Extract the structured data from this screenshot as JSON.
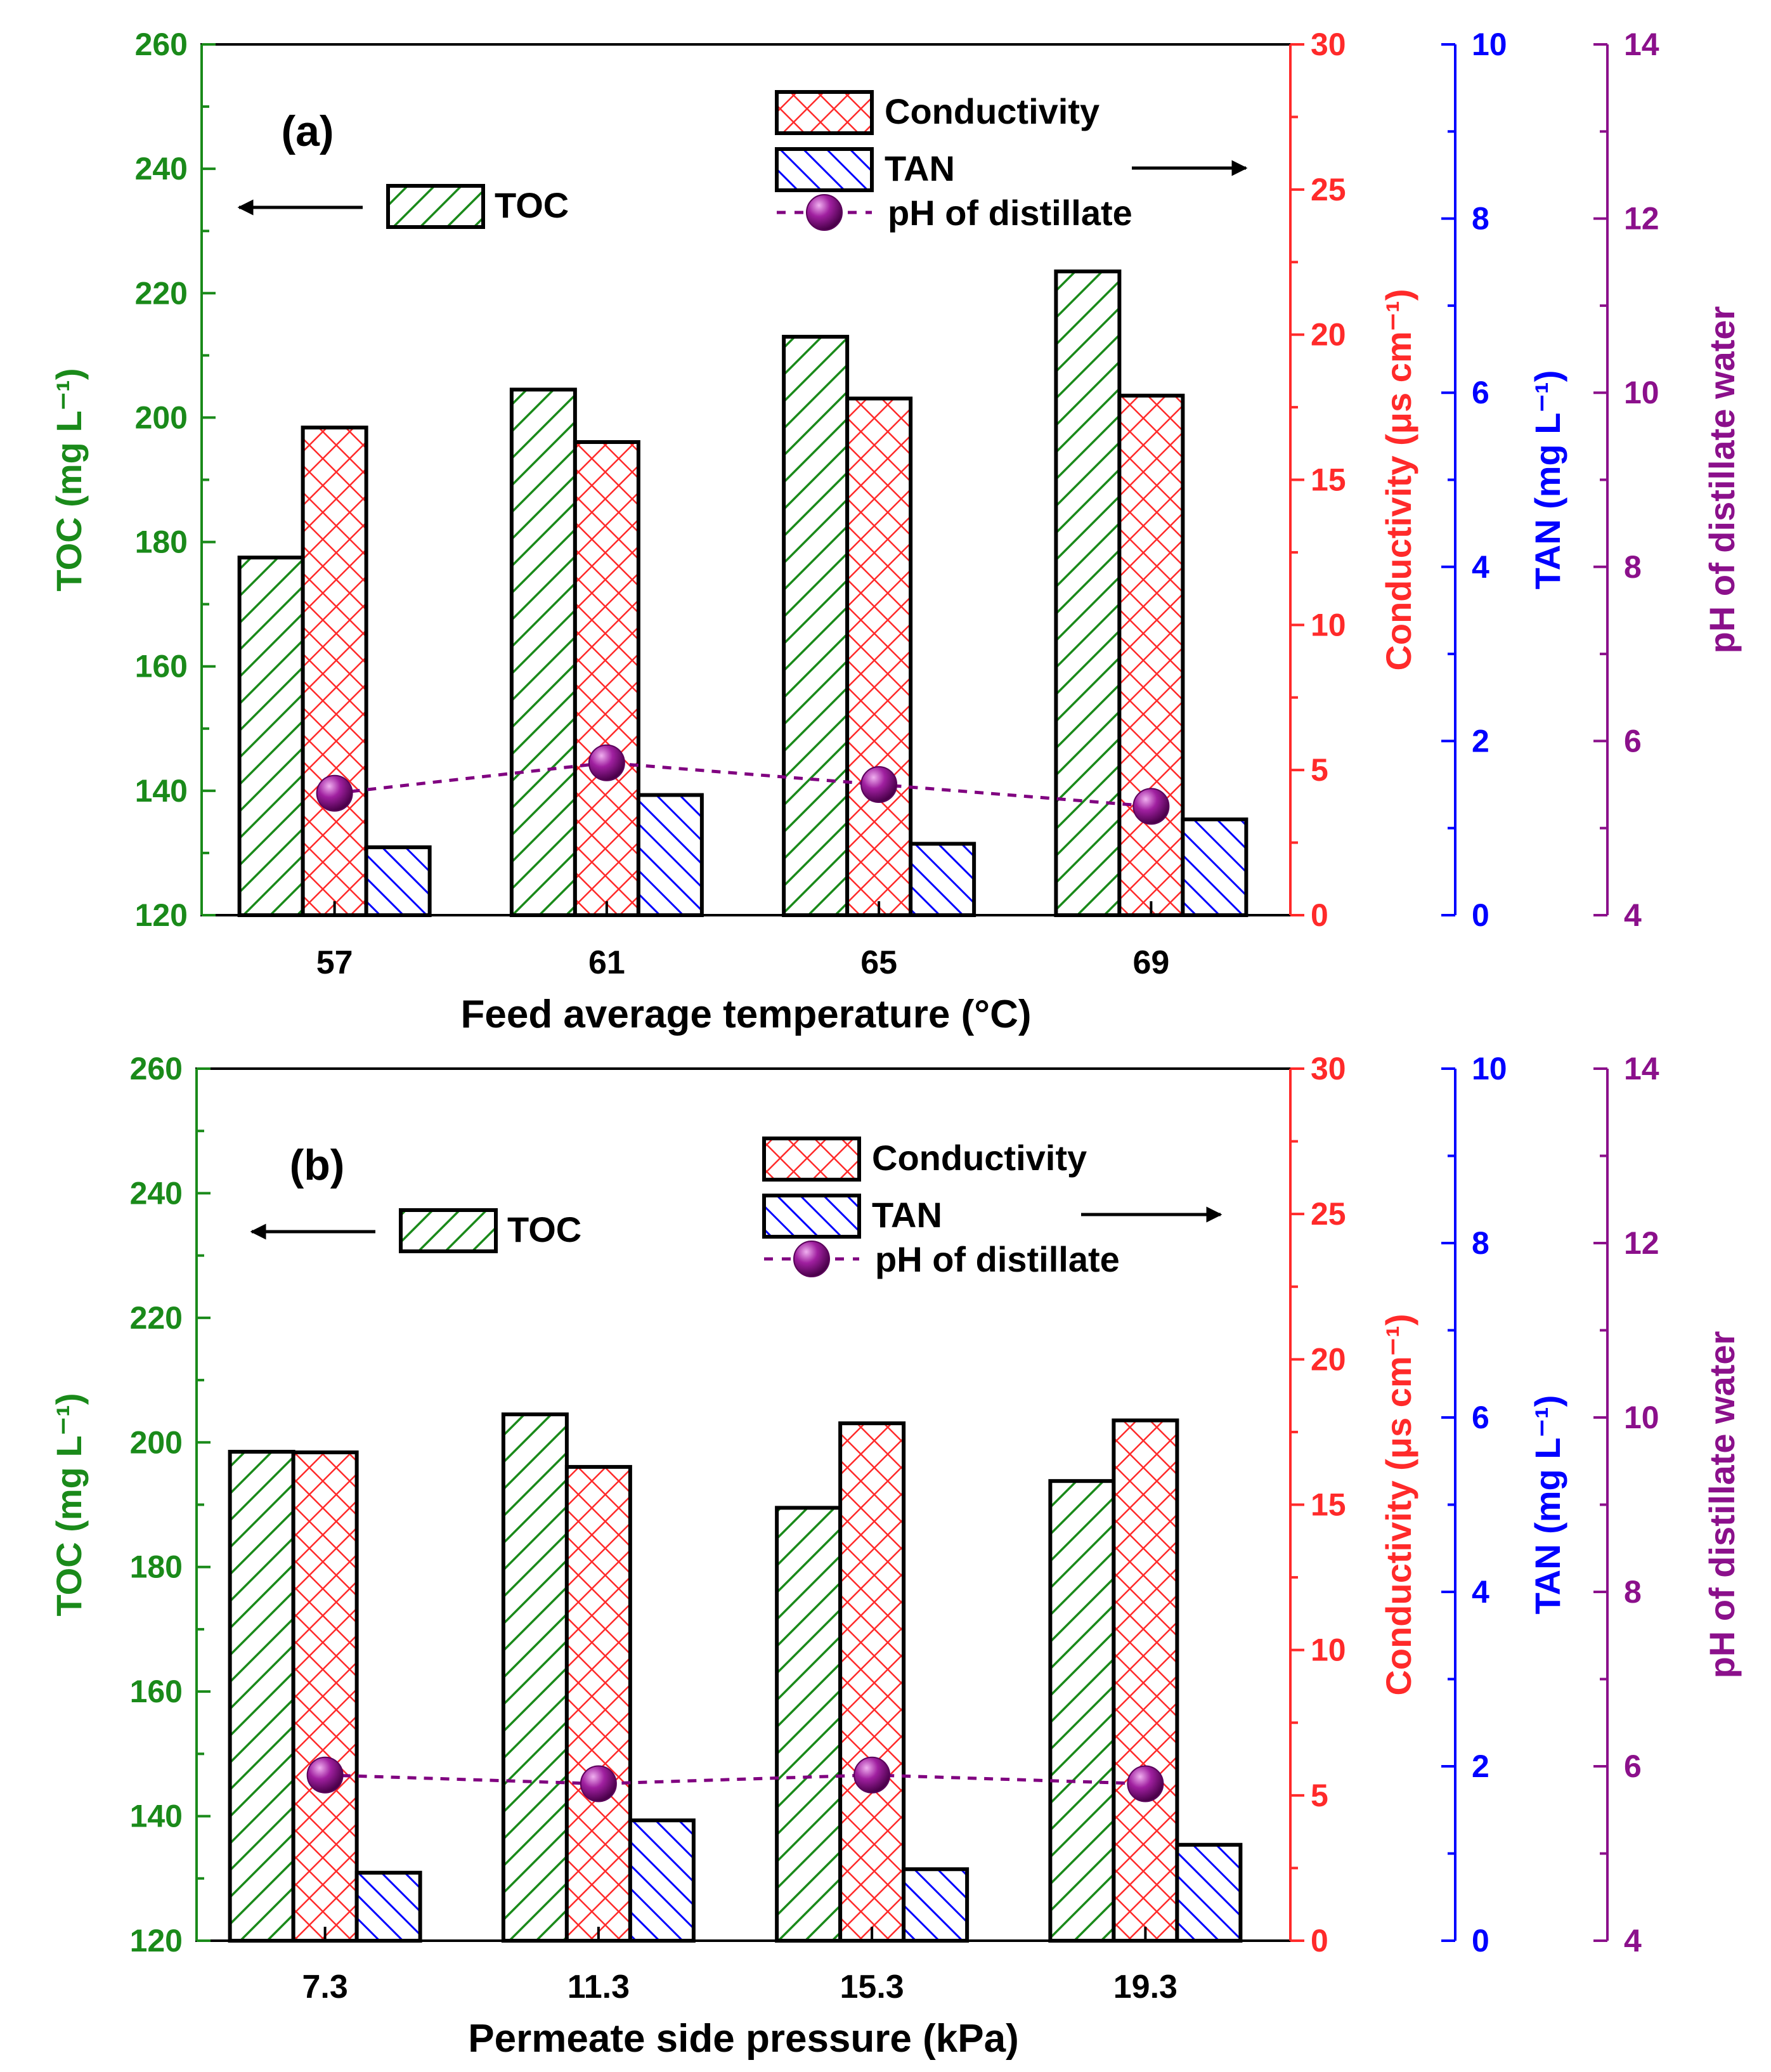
{
  "colors": {
    "toc": "#1a8a1a",
    "conductivity": "#ff2a2a",
    "tan": "#0000ff",
    "ph": "#8b108b",
    "ph_marker": "#800080",
    "text": "#000000"
  },
  "legend": {
    "toc": "TOC",
    "conductivity": "Conductivity",
    "tan": "TAN",
    "ph": "pH of distillate"
  },
  "chart_data": [
    {
      "type": "bar",
      "panel_label": "(a)",
      "xlabel": "Feed average temperature (°C)",
      "categories": [
        "57",
        "61",
        "65",
        "69"
      ],
      "axes": {
        "toc": {
          "label": "TOC (mg L⁻¹)",
          "range": [
            120,
            260
          ],
          "ticks": [
            "120",
            "140",
            "160",
            "180",
            "200",
            "220",
            "240",
            "260"
          ],
          "side": "left"
        },
        "conductivity": {
          "label": "Conductivity (μs cm⁻¹)",
          "range": [
            0,
            30
          ],
          "ticks": [
            "0",
            "5",
            "10",
            "15",
            "20",
            "25",
            "30"
          ],
          "side": "right"
        },
        "tan": {
          "label": "TAN (mg L⁻¹)",
          "range": [
            0,
            10
          ],
          "ticks": [
            "0",
            "2",
            "4",
            "6",
            "8",
            "10"
          ],
          "side": "right"
        },
        "ph": {
          "label": "pH of distillate water",
          "range": [
            4,
            14
          ],
          "ticks": [
            "4",
            "6",
            "8",
            "10",
            "12",
            "14"
          ],
          "side": "right"
        }
      },
      "series": [
        {
          "name": "TOC",
          "axis": "toc",
          "values": [
            177.5,
            204.5,
            213,
            223.5
          ]
        },
        {
          "name": "Conductivity",
          "axis": "conductivity",
          "values": [
            16.8,
            16.3,
            17.8,
            17.9
          ]
        },
        {
          "name": "TAN",
          "axis": "tan",
          "values": [
            0.78,
            1.38,
            0.82,
            1.1
          ]
        },
        {
          "name": "pH of distillate",
          "axis": "ph",
          "type": "line",
          "values": [
            5.4,
            5.75,
            5.5,
            5.25
          ]
        }
      ]
    },
    {
      "type": "bar",
      "panel_label": "(b)",
      "xlabel": "Permeate side pressure (kPa)",
      "categories": [
        "7.3",
        "11.3",
        "15.3",
        "19.3"
      ],
      "axes": {
        "toc": {
          "label": "TOC (mg L⁻¹)",
          "range": [
            120,
            260
          ],
          "ticks": [
            "120",
            "140",
            "160",
            "180",
            "200",
            "220",
            "240",
            "260"
          ],
          "side": "left"
        },
        "conductivity": {
          "label": "Conductivity (μs cm⁻¹)",
          "range": [
            0,
            30
          ],
          "ticks": [
            "0",
            "5",
            "10",
            "15",
            "20",
            "25",
            "30"
          ],
          "side": "right"
        },
        "tan": {
          "label": "TAN (mg L⁻¹)",
          "range": [
            0,
            10
          ],
          "ticks": [
            "0",
            "2",
            "4",
            "6",
            "8",
            "10"
          ],
          "side": "right"
        },
        "ph": {
          "label": "pH of distillate water",
          "range": [
            4,
            14
          ],
          "ticks": [
            "4",
            "6",
            "8",
            "10",
            "12",
            "14"
          ],
          "side": "right"
        }
      },
      "series": [
        {
          "name": "TOC",
          "axis": "toc",
          "values": [
            198.5,
            204.5,
            189.5,
            193.8
          ]
        },
        {
          "name": "Conductivity",
          "axis": "conductivity",
          "values": [
            16.8,
            16.3,
            17.8,
            17.9
          ]
        },
        {
          "name": "TAN",
          "axis": "tan",
          "values": [
            0.78,
            1.38,
            0.82,
            1.1
          ]
        },
        {
          "name": "pH of distillate",
          "axis": "ph",
          "type": "line",
          "values": [
            5.9,
            5.8,
            5.9,
            5.8
          ]
        }
      ]
    }
  ]
}
